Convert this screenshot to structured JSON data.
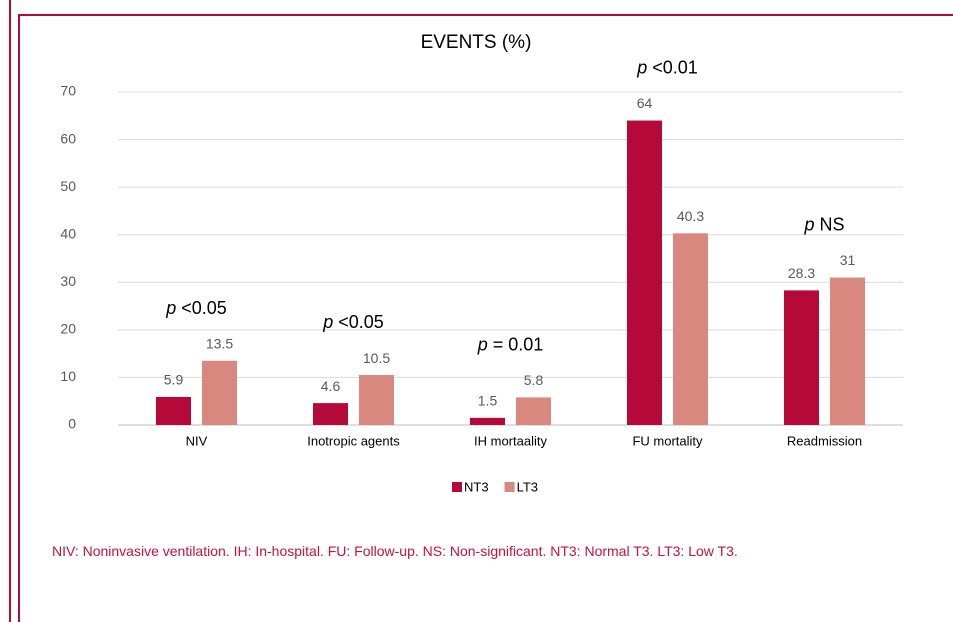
{
  "chart_data": {
    "type": "bar",
    "title": "EVENTS (%)",
    "categories": [
      "NIV",
      "Inotropic agents",
      "IH mortaality",
      "FU mortality",
      "Readmission"
    ],
    "series": [
      {
        "name": "NT3",
        "color": "#b5093a",
        "values": [
          5.9,
          4.6,
          1.5,
          64,
          28.3
        ]
      },
      {
        "name": "LT3",
        "color": "#d98880",
        "values": [
          13.5,
          10.5,
          5.8,
          40.3,
          31
        ]
      }
    ],
    "p_symbol": "p",
    "p_values": [
      "<0.05",
      "<0.05",
      "= 0.01",
      "<0.01",
      "NS"
    ],
    "ylim": [
      0,
      70
    ],
    "yticks": [
      0,
      10,
      20,
      30,
      40,
      50,
      60,
      70
    ],
    "grid": true,
    "footnote": "NIV: Noninvasive ventilation. IH: In-hospital. FU: Follow-up. NS: Non-significant. NT3: Normal T3. LT3: Low T3."
  }
}
